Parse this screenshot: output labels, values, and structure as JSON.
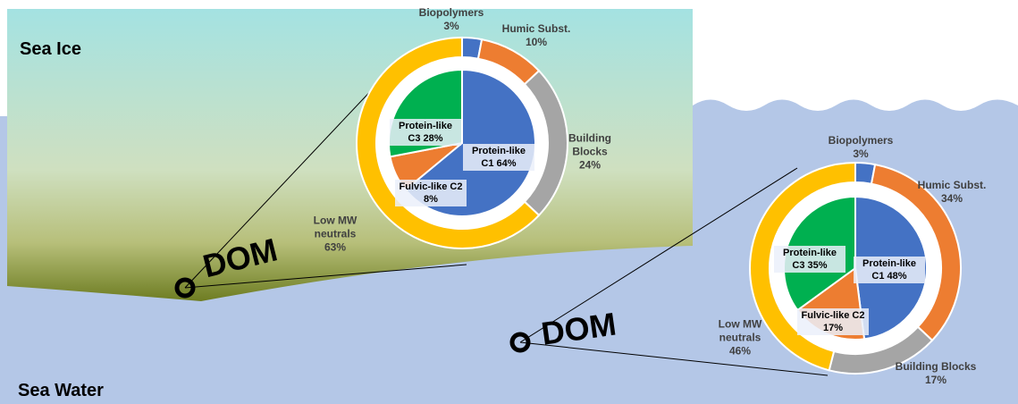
{
  "labels": {
    "sea_ice": "Sea Ice",
    "sea_water": "Sea Water"
  },
  "chart_data": [
    {
      "type": "donut",
      "label": "DOM",
      "outer": {
        "categories": [
          "Biopolymers",
          "Humic Subst.",
          "Building Blocks",
          "Low MW neutrals"
        ],
        "values": [
          3,
          10,
          24,
          63
        ],
        "value_labels": [
          "3%",
          "10%",
          "24%",
          "63%"
        ],
        "colors": [
          "#4472c4",
          "#ed7d31",
          "#a5a5a5",
          "#ffc000"
        ]
      },
      "inner": {
        "categories": [
          "Protein-like C1",
          "Fulvic-like C2",
          "Protein-like C3"
        ],
        "values": [
          64,
          8,
          28
        ],
        "value_labels": [
          "64%",
          "8%",
          "28%"
        ],
        "colors": [
          "#4472c4",
          "#ed7d31",
          "#00b050"
        ]
      }
    },
    {
      "type": "donut",
      "label": "DOM",
      "outer": {
        "categories": [
          "Biopolymers",
          "Humic Subst.",
          "Building Blocks",
          "Low MW neutrals"
        ],
        "values": [
          3,
          34,
          17,
          46
        ],
        "value_labels": [
          "3%",
          "34%",
          "17%",
          "46%"
        ],
        "colors": [
          "#4472c4",
          "#ed7d31",
          "#a5a5a5",
          "#ffc000"
        ]
      },
      "inner": {
        "categories": [
          "Protein-like C1",
          "Fulvic-like C2",
          "Protein-like C3"
        ],
        "values": [
          48,
          17,
          35
        ],
        "value_labels": [
          "48%",
          "17%",
          "35%"
        ],
        "colors": [
          "#4472c4",
          "#ed7d31",
          "#00b050"
        ]
      }
    }
  ]
}
